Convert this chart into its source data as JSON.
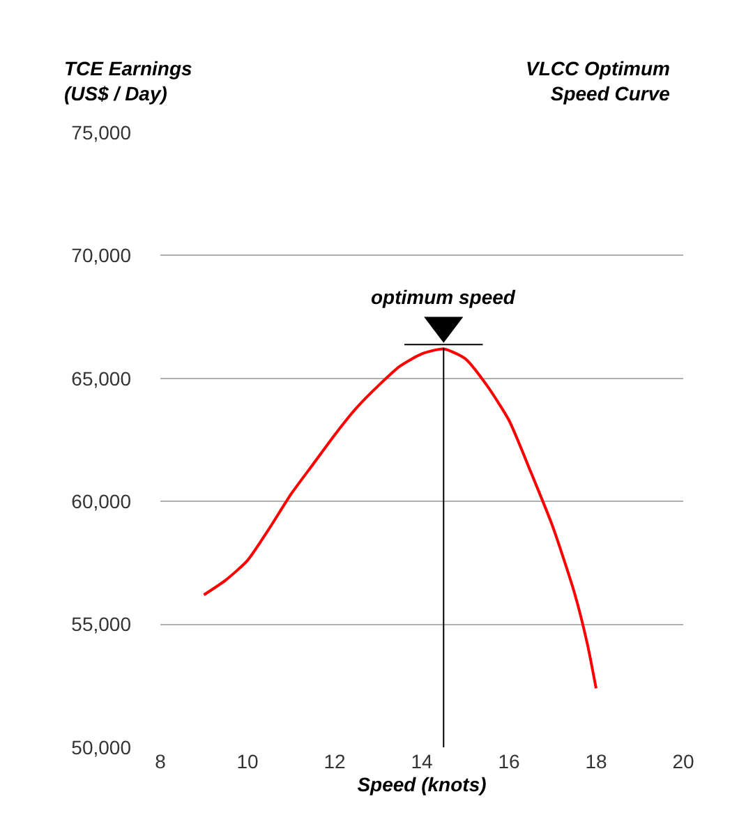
{
  "chart_data": {
    "type": "line",
    "title": "VLCC Optimum\nSpeed Curve",
    "ylabel": "TCE Earnings\n(US$ / Day)",
    "xlabel": "Speed (knots)",
    "x": [
      9,
      9.5,
      10,
      10.5,
      11,
      11.5,
      12,
      12.5,
      13,
      13.5,
      14,
      14.5,
      15,
      15.5,
      16,
      16.5,
      17,
      17.5,
      17.8,
      18
    ],
    "series": [
      {
        "color": "#ff0000",
        "values": [
          56200,
          56800,
          57600,
          58900,
          60300,
          61500,
          62700,
          63800,
          64700,
          65500,
          66000,
          66200,
          65800,
          64700,
          63300,
          61200,
          59000,
          56300,
          54200,
          52400
        ]
      }
    ],
    "xlim": [
      8,
      20
    ],
    "xticks": [
      8,
      10,
      12,
      14,
      16,
      18,
      20
    ],
    "ylim": [
      50000,
      75000
    ],
    "yticks": [
      {
        "value": 50000,
        "label": "50,000"
      },
      {
        "value": 55000,
        "label": "55,000"
      },
      {
        "value": 60000,
        "label": "60,000"
      },
      {
        "value": 65000,
        "label": "65,000"
      },
      {
        "value": 70000,
        "label": "70,000"
      },
      {
        "value": 75000,
        "label": "75,000"
      }
    ],
    "ref_lines": [
      {
        "axis": "x",
        "value": 14.5,
        "label": "optimum speed",
        "color": "#000000"
      }
    ],
    "grid": "y",
    "marker": "none",
    "line_style": "solid"
  }
}
